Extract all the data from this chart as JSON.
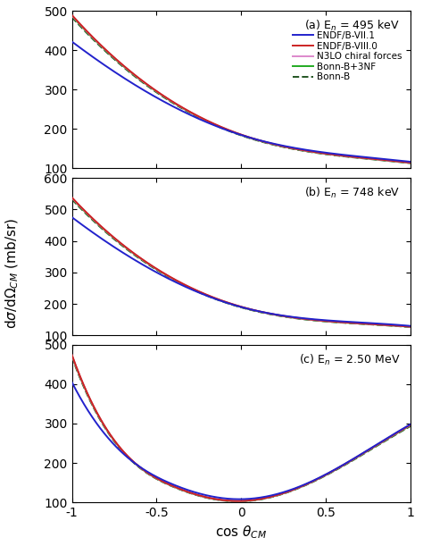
{
  "legend_labels": [
    "ENDF/B-VII.1",
    "ENDF/B-VIII.0",
    "N3LO chiral forces",
    "Bonn-B+3NF",
    "Bonn-B"
  ],
  "line_colors": [
    "#2222cc",
    "#cc2222",
    "#dd88cc",
    "#22aa22",
    "#225522"
  ],
  "line_styles": [
    "-",
    "-",
    "-",
    "-",
    "--"
  ],
  "line_widths": [
    1.4,
    1.4,
    1.4,
    1.4,
    1.4
  ],
  "panel_a": {
    "label": "(a) E$_n$ = 495 keV",
    "ylim": [
      100,
      500
    ],
    "yticks": [
      100,
      200,
      300,
      400,
      500
    ],
    "blue_pts": [
      [
        -1.0,
        422
      ],
      [
        -0.5,
        280
      ],
      [
        0.0,
        185
      ],
      [
        0.5,
        140
      ],
      [
        1.0,
        117
      ]
    ],
    "green_pts": [
      [
        -1.0,
        487
      ],
      [
        -0.5,
        295
      ],
      [
        0.0,
        185
      ],
      [
        0.5,
        137
      ],
      [
        1.0,
        114
      ]
    ]
  },
  "panel_b": {
    "label": "(b) E$_n$ = 748 keV",
    "ylim": [
      100,
      600
    ],
    "yticks": [
      100,
      200,
      300,
      400,
      500,
      600
    ],
    "blue_pts": [
      [
        -1.0,
        475
      ],
      [
        -0.5,
        300
      ],
      [
        0.0,
        190
      ],
      [
        0.5,
        148
      ],
      [
        1.0,
        130
      ]
    ],
    "green_pts": [
      [
        -1.0,
        535
      ],
      [
        -0.5,
        310
      ],
      [
        0.0,
        190
      ],
      [
        0.5,
        145
      ],
      [
        1.0,
        127
      ]
    ]
  },
  "panel_c": {
    "label": "(c) E$_n$ = 2.50 MeV",
    "ylim": [
      100,
      500
    ],
    "yticks": [
      100,
      200,
      300,
      400,
      500
    ],
    "blue_pts": [
      [
        -1.0,
        405
      ],
      [
        -0.7,
        225
      ],
      [
        -0.4,
        145
      ],
      [
        0.0,
        108
      ],
      [
        0.4,
        150
      ],
      [
        0.7,
        220
      ],
      [
        1.0,
        298
      ]
    ],
    "green_pts": [
      [
        -1.0,
        472
      ],
      [
        -0.7,
        230
      ],
      [
        -0.4,
        140
      ],
      [
        0.0,
        103
      ],
      [
        0.4,
        148
      ],
      [
        0.7,
        218
      ],
      [
        1.0,
        295
      ]
    ]
  },
  "xlim": [
    -1.0,
    1.0
  ],
  "xticks": [
    -1.0,
    -0.5,
    0.0,
    0.5,
    1.0
  ],
  "xtick_labels": [
    "-1",
    "-0.5",
    "0",
    "0.5",
    "1"
  ],
  "background_color": "#ffffff",
  "show_legend_panel": 0
}
